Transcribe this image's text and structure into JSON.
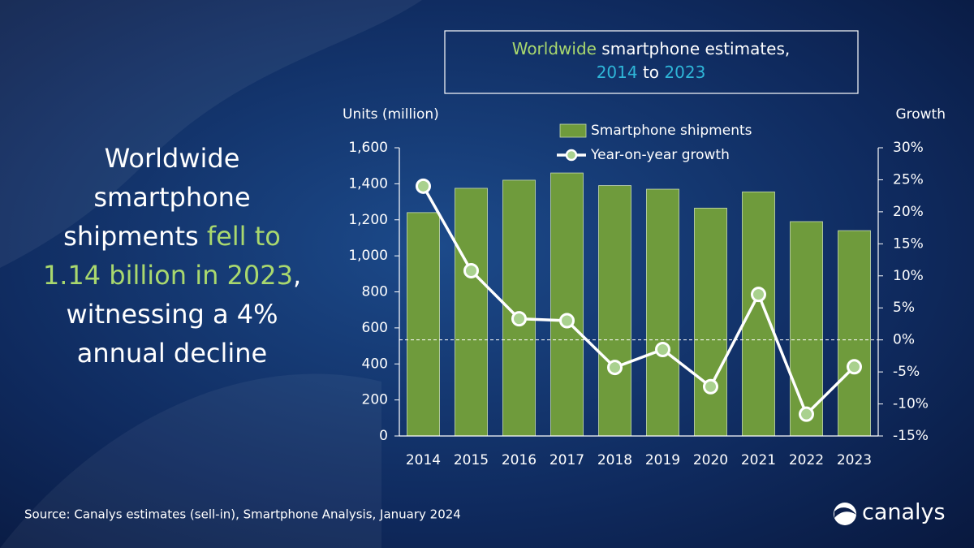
{
  "headline": {
    "lines": [
      [
        {
          "text": "Worldwide",
          "color": "#ffffff"
        }
      ],
      [
        {
          "text": "smartphone",
          "color": "#ffffff"
        }
      ],
      [
        {
          "text": "shipments ",
          "color": "#ffffff"
        },
        {
          "text": "fell to",
          "color": "#a9d86e"
        }
      ],
      [
        {
          "text": "1.14 billion in 2023",
          "color": "#a9d86e"
        },
        {
          "text": ",",
          "color": "#ffffff"
        }
      ],
      [
        {
          "text": "witnessing a 4%",
          "color": "#ffffff"
        }
      ],
      [
        {
          "text": "annual decline",
          "color": "#ffffff"
        }
      ]
    ]
  },
  "source": "Source:  Canalys estimates (sell-in), Smartphone Analysis, January 2024",
  "logo": "canalys",
  "chart_data": {
    "type": "bar",
    "title": {
      "lines": [
        [
          {
            "text": "Worldwide",
            "color": "#a9d86e"
          },
          {
            "text": " smartphone estimates,",
            "color": "#ffffff"
          }
        ],
        [
          {
            "text": "2014",
            "color": "#2fb6d8"
          },
          {
            "text": " to ",
            "color": "#ffffff"
          },
          {
            "text": "2023",
            "color": "#2fb6d8"
          }
        ]
      ]
    },
    "y_label": "Units (million)",
    "y2_label": "Growth",
    "categories": [
      "2014",
      "2015",
      "2016",
      "2017",
      "2018",
      "2019",
      "2020",
      "2021",
      "2022",
      "2023"
    ],
    "series": [
      {
        "name": "Smartphone shipments",
        "type": "bar",
        "color": "#6f9b3c",
        "values": [
          1240,
          1375,
          1420,
          1460,
          1390,
          1370,
          1265,
          1355,
          1190,
          1140
        ]
      },
      {
        "name": "Year-on-year growth",
        "type": "line",
        "axis": "y2",
        "color": "#ffffff",
        "marker_color": "#a9d18e",
        "values": [
          24,
          10.8,
          3.3,
          3.0,
          -4.3,
          -1.5,
          -7.3,
          7.1,
          -11.6,
          -4.2
        ]
      }
    ],
    "ylim": [
      0,
      1600
    ],
    "yticks": [
      0,
      200,
      400,
      600,
      800,
      {
        "value": 1000,
        "label": "1,000"
      },
      {
        "value": 1200,
        "label": "1,200"
      },
      {
        "value": 1400,
        "label": "1,400"
      },
      {
        "value": 1600,
        "label": "1,600"
      }
    ],
    "y2lim": [
      -15,
      30
    ],
    "y2ticks": [
      {
        "value": -15,
        "label": "-15%"
      },
      {
        "value": -10,
        "label": "-10%"
      },
      {
        "value": -5,
        "label": "-5%"
      },
      {
        "value": 0,
        "label": "0%"
      },
      {
        "value": 5,
        "label": "5%"
      },
      {
        "value": 10,
        "label": "10%"
      },
      {
        "value": 15,
        "label": "15%"
      },
      {
        "value": 20,
        "label": "20%"
      },
      {
        "value": 25,
        "label": "25%"
      },
      {
        "value": 30,
        "label": "30%"
      }
    ],
    "zero_line": true
  }
}
